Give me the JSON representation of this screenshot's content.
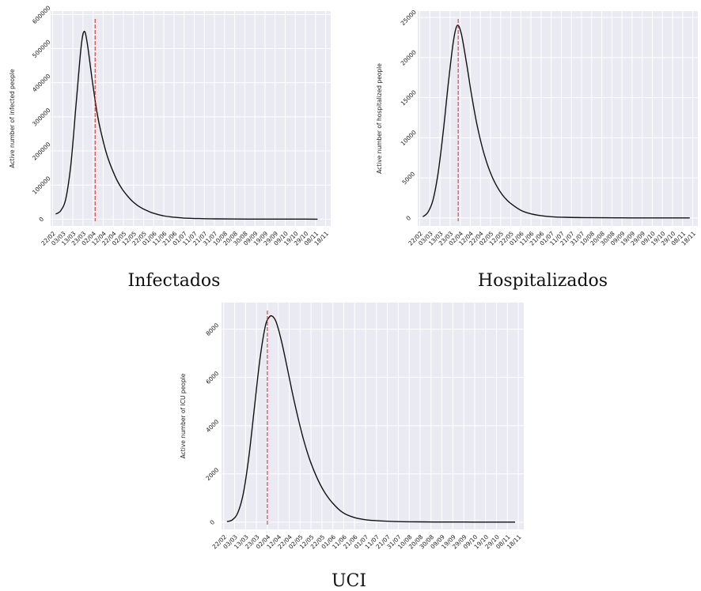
{
  "colors": {
    "plot_background": "#eaeaf2",
    "grid": "#ffffff",
    "curve": "#111111",
    "marker_line": "#d62728"
  },
  "chart_data": [
    {
      "type": "line",
      "caption": "Infectados",
      "ylabel": "Active number of infected people",
      "ylim": [
        -20000,
        610000
      ],
      "yticks": [
        0,
        100000,
        200000,
        300000,
        400000,
        500000,
        600000
      ],
      "xticks": [
        "22/02",
        "03/03",
        "13/03",
        "23/03",
        "02/04",
        "12/04",
        "22/04",
        "02/05",
        "12/05",
        "22/05",
        "01/06",
        "11/06",
        "21/06",
        "01/07",
        "11/07",
        "21/07",
        "31/07",
        "10/08",
        "20/08",
        "30/08",
        "09/09",
        "19/09",
        "29/09",
        "09/10",
        "19/10",
        "29/10",
        "08/11",
        "18/11"
      ],
      "xlim": [
        "2020-02-20",
        "2020-11-23"
      ],
      "vline_date": "2020-04-04",
      "peak_date": "2020-03-24",
      "peak_value": 550000,
      "x": [
        "2020-02-25",
        "2020-03-01",
        "2020-03-06",
        "2020-03-11",
        "2020-03-16",
        "2020-03-21",
        "2020-03-24",
        "2020-03-27",
        "2020-04-01",
        "2020-04-06",
        "2020-04-11",
        "2020-04-16",
        "2020-04-21",
        "2020-04-26",
        "2020-05-01",
        "2020-05-06",
        "2020-05-11",
        "2020-05-16",
        "2020-05-21",
        "2020-05-26",
        "2020-05-31",
        "2020-06-10",
        "2020-06-20",
        "2020-06-30",
        "2020-07-15",
        "2020-08-01",
        "2020-08-20",
        "2020-09-10",
        "2020-10-01",
        "2020-10-20",
        "2020-11-10"
      ],
      "y": [
        15000,
        25000,
        60000,
        160000,
        330000,
        500000,
        550000,
        520000,
        410000,
        310000,
        240000,
        185000,
        145000,
        112000,
        87000,
        68000,
        52000,
        40000,
        31000,
        24000,
        18000,
        10000,
        6000,
        3500,
        1800,
        900,
        400,
        200,
        100,
        50,
        20
      ],
      "grid": true
    },
    {
      "type": "line",
      "caption": "Hospitalizados",
      "ylabel": "Active number of hospitalized people",
      "ylim": [
        -1000,
        25800
      ],
      "yticks": [
        0,
        5000,
        10000,
        15000,
        20000,
        25000
      ],
      "xticks": [
        "22/02",
        "03/03",
        "13/03",
        "23/03",
        "02/04",
        "12/04",
        "22/04",
        "02/05",
        "12/05",
        "22/05",
        "01/06",
        "11/06",
        "21/06",
        "01/07",
        "11/07",
        "21/07",
        "31/07",
        "10/08",
        "20/08",
        "30/08",
        "09/09",
        "19/09",
        "29/09",
        "09/10",
        "19/10",
        "29/10",
        "08/11",
        "18/11"
      ],
      "xlim": [
        "2020-02-20",
        "2020-11-23"
      ],
      "vline_date": "2020-03-31",
      "peak_date": "2020-03-30",
      "peak_value": 24000,
      "x": [
        "2020-02-25",
        "2020-03-01",
        "2020-03-06",
        "2020-03-11",
        "2020-03-16",
        "2020-03-21",
        "2020-03-26",
        "2020-03-30",
        "2020-04-03",
        "2020-04-08",
        "2020-04-13",
        "2020-04-18",
        "2020-04-23",
        "2020-04-28",
        "2020-05-03",
        "2020-05-08",
        "2020-05-13",
        "2020-05-18",
        "2020-05-23",
        "2020-06-01",
        "2020-06-10",
        "2020-06-20",
        "2020-07-01",
        "2020-07-15",
        "2020-08-01",
        "2020-08-20",
        "2020-09-10",
        "2020-10-01",
        "2020-10-20",
        "2020-11-15"
      ],
      "y": [
        150,
        700,
        2200,
        5500,
        10500,
        16500,
        21800,
        24000,
        23000,
        19500,
        15500,
        12000,
        9200,
        7000,
        5300,
        4000,
        3000,
        2250,
        1700,
        950,
        550,
        300,
        150,
        80,
        40,
        20,
        10,
        5,
        3,
        2
      ],
      "grid": true
    },
    {
      "type": "line",
      "caption": "UCI",
      "ylabel": "Active number of ICU people",
      "ylim": [
        -300,
        9100
      ],
      "yticks": [
        0,
        2000,
        4000,
        6000,
        8000
      ],
      "xticks": [
        "22/02",
        "03/03",
        "13/03",
        "23/03",
        "02/04",
        "12/04",
        "22/04",
        "02/05",
        "12/05",
        "22/05",
        "01/06",
        "11/06",
        "21/06",
        "01/07",
        "11/07",
        "21/07",
        "31/07",
        "10/08",
        "20/08",
        "30/08",
        "09/09",
        "19/09",
        "29/09",
        "09/10",
        "19/10",
        "29/10",
        "08/11",
        "18/11"
      ],
      "xlim": [
        "2020-02-20",
        "2020-11-23"
      ],
      "vline_date": "2020-04-02",
      "peak_date": "2020-04-06",
      "peak_value": 8550,
      "x": [
        "2020-02-25",
        "2020-03-01",
        "2020-03-06",
        "2020-03-11",
        "2020-03-16",
        "2020-03-21",
        "2020-03-26",
        "2020-03-31",
        "2020-04-03",
        "2020-04-06",
        "2020-04-10",
        "2020-04-15",
        "2020-04-20",
        "2020-04-25",
        "2020-04-30",
        "2020-05-05",
        "2020-05-10",
        "2020-05-15",
        "2020-05-20",
        "2020-05-25",
        "2020-06-01",
        "2020-06-10",
        "2020-06-20",
        "2020-07-01",
        "2020-07-15",
        "2020-08-01",
        "2020-08-20",
        "2020-09-10",
        "2020-10-01",
        "2020-10-20",
        "2020-11-15"
      ],
      "y": [
        20,
        100,
        400,
        1200,
        2700,
        4700,
        6700,
        8100,
        8450,
        8550,
        8300,
        7500,
        6450,
        5350,
        4350,
        3450,
        2700,
        2100,
        1600,
        1200,
        780,
        400,
        200,
        100,
        50,
        20,
        10,
        5,
        3,
        2,
        1
      ],
      "grid": true
    }
  ]
}
